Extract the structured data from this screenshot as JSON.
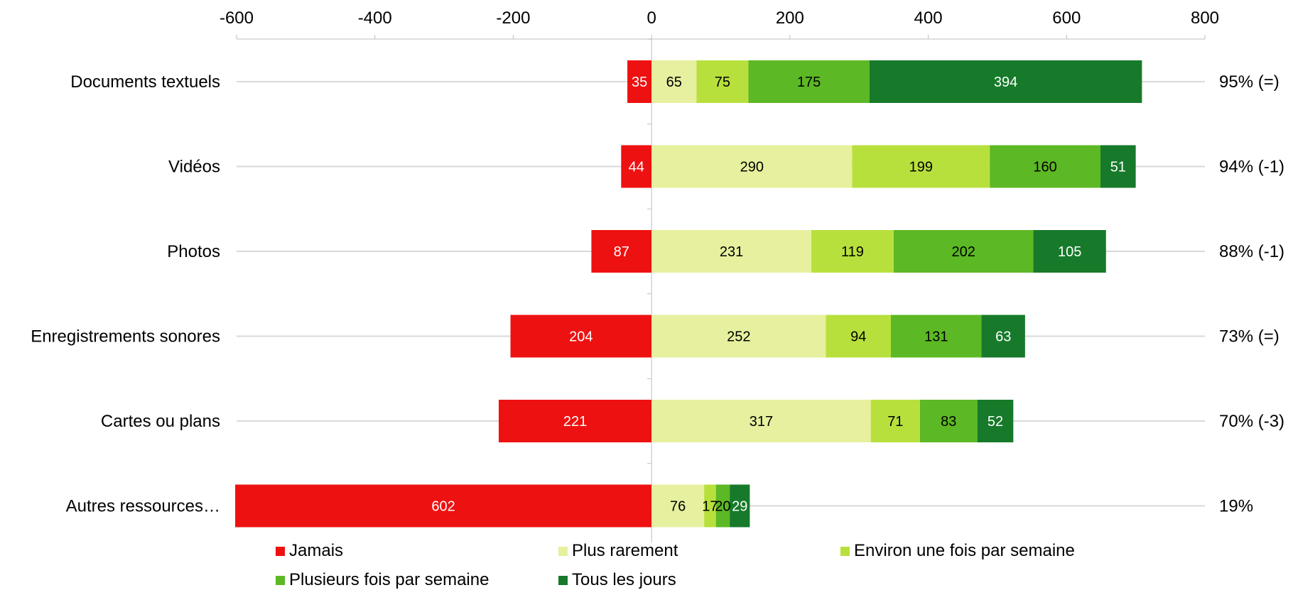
{
  "chart_data": {
    "type": "bar",
    "orientation": "horizontal",
    "stacked": true,
    "diverging": true,
    "xlim": [
      -600,
      800
    ],
    "xticks": [
      -600,
      -400,
      -200,
      0,
      200,
      400,
      600,
      800
    ],
    "xtick_labels": [
      "-600",
      "-400",
      "-200",
      "0",
      "200",
      "400",
      "600",
      "800"
    ],
    "axis_position": "top",
    "grid": false,
    "legend_position": "bottom",
    "categories": [
      "Documents textuels",
      "Vidéos",
      "Photos",
      "Enregistrements sonores",
      "Cartes ou plans",
      "Autres ressources…"
    ],
    "right_labels": [
      "95% (=)",
      "94% (-1)",
      "88% (-1)",
      "73% (=)",
      "70% (-3)",
      "19%"
    ],
    "series": [
      {
        "name": "Jamais",
        "color": "#ee1111",
        "text_color": "#ffffff",
        "direction": "negative",
        "values": [
          35,
          44,
          87,
          204,
          221,
          602
        ]
      },
      {
        "name": "Plus rarement",
        "color": "#e6f09e",
        "text_color": "#000000",
        "direction": "positive",
        "values": [
          65,
          290,
          231,
          252,
          317,
          76
        ]
      },
      {
        "name": "Environ une fois par semaine",
        "color": "#b8e03c",
        "text_color": "#000000",
        "direction": "positive",
        "values": [
          75,
          199,
          119,
          94,
          71,
          17
        ]
      },
      {
        "name": "Plusieurs fois par semaine",
        "color": "#5cb824",
        "text_color": "#000000",
        "direction": "positive",
        "values": [
          175,
          160,
          202,
          131,
          83,
          20
        ]
      },
      {
        "name": "Tous les jours",
        "color": "#167a2a",
        "text_color": "#ffffff",
        "direction": "positive",
        "values": [
          394,
          51,
          105,
          63,
          52,
          29
        ]
      }
    ]
  }
}
